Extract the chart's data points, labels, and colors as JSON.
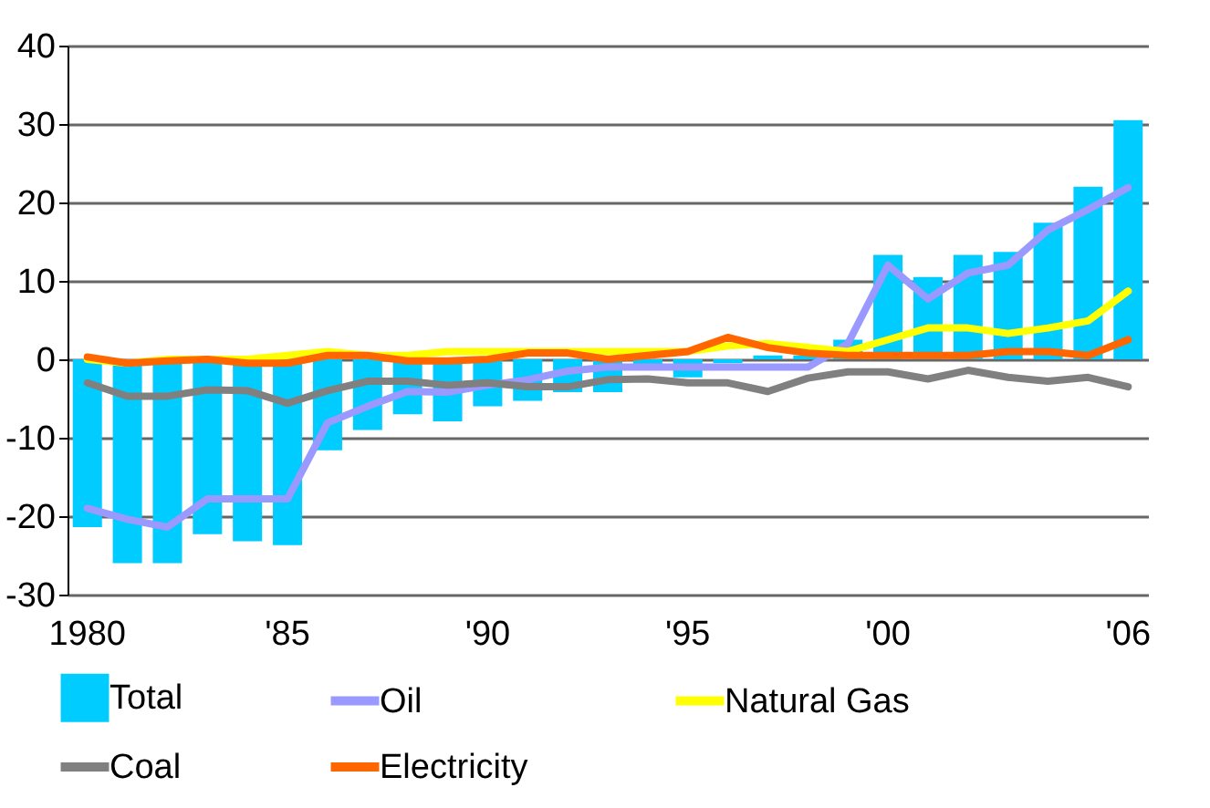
{
  "chart_data": {
    "type": "bar",
    "categories": [
      "1980",
      null,
      null,
      null,
      null,
      "'85",
      null,
      null,
      null,
      null,
      "'90",
      null,
      null,
      null,
      null,
      "'95",
      null,
      null,
      null,
      null,
      "'00",
      null,
      null,
      null,
      null,
      null,
      "'06"
    ],
    "series": [
      {
        "name": "Total",
        "color": "#00ccff",
        "values": [
          -21.4,
          -26,
          -26,
          -22.3,
          -23.2,
          -23.7,
          -11.6,
          -9,
          -7,
          -7.9,
          -6,
          -5.3,
          -4.2,
          -4.2,
          -1,
          -2.3,
          -0.5,
          0.5,
          0.5,
          2.5,
          13.3,
          10.5,
          13.3,
          13.7,
          17.4,
          22,
          30.5
        ]
      },
      {
        "name": "Oil",
        "type": "line",
        "color": "#9999ff",
        "values": [
          -19,
          -20.4,
          -21.4,
          -17.8,
          -17.8,
          -17.8,
          -8.1,
          -6,
          -4.1,
          -4.2,
          -3.3,
          -2.6,
          -1.5,
          -1,
          -1,
          -1,
          -1,
          -1,
          -1,
          2,
          12,
          7.7,
          11,
          12,
          16.5,
          19.1,
          21.9
        ]
      },
      {
        "name": "Natural Gas",
        "type": "line",
        "color": "#ffff00",
        "values": [
          0,
          -0.5,
          0,
          0,
          0,
          0.5,
          1,
          0.5,
          0.5,
          1,
          1,
          1,
          1,
          1,
          1,
          1,
          1.7,
          2,
          1.5,
          1,
          2.5,
          4,
          4,
          3.3,
          4,
          4.9,
          8.7
        ]
      },
      {
        "name": "Coal",
        "type": "line",
        "color": "#808080",
        "values": [
          -3,
          -4.7,
          -4.7,
          -3.9,
          -4,
          -5.6,
          -4,
          -2.8,
          -2.8,
          -3.3,
          -3,
          -3.5,
          -3.5,
          -2.6,
          -2.5,
          -3,
          -3,
          -4.1,
          -2.4,
          -1.6,
          -1.6,
          -2.5,
          -1.4,
          -2.3,
          -2.8,
          -2.3,
          -3.5
        ]
      },
      {
        "name": "Electricity",
        "type": "line",
        "color": "#ff6600",
        "values": [
          0.3,
          -0.5,
          -0.2,
          0,
          -0.5,
          -0.5,
          0.5,
          0.5,
          -0.2,
          -0.2,
          0,
          0.8,
          0.8,
          0,
          0.5,
          1,
          2.8,
          1.5,
          0.8,
          0.5,
          0.5,
          0.5,
          0.5,
          1,
          1,
          0.5,
          2.5
        ]
      }
    ],
    "ylim": [
      -30,
      40
    ],
    "yticks": [
      -30,
      -20,
      -10,
      0,
      10,
      20,
      30,
      40
    ],
    "grid": "y",
    "legend": "bottom"
  }
}
